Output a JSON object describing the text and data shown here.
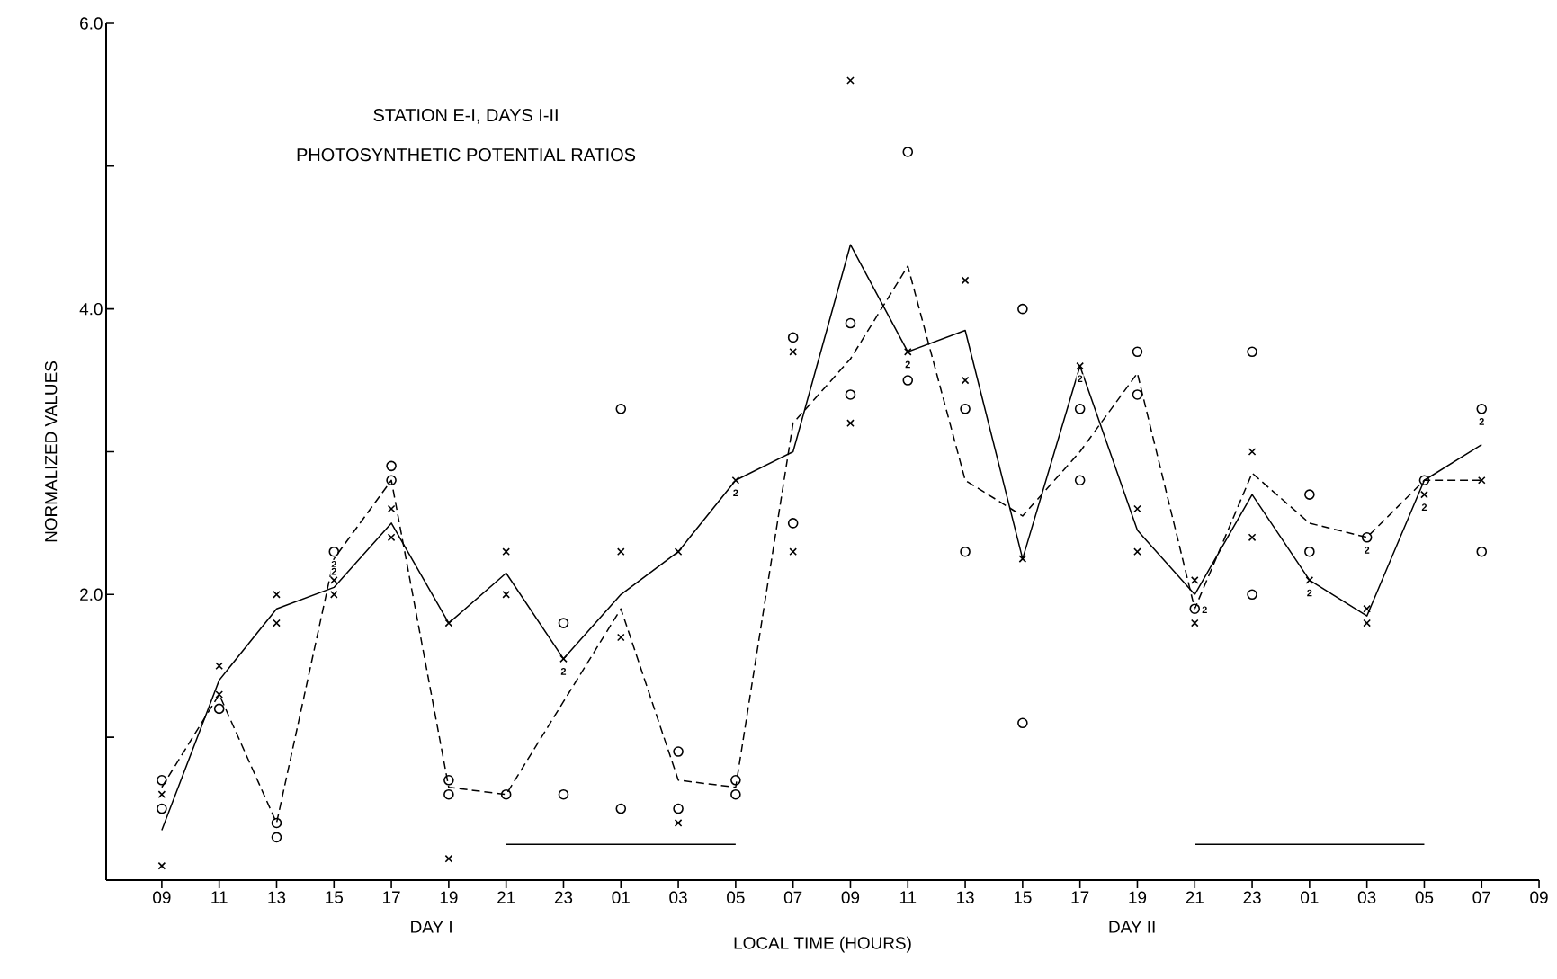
{
  "chart_data": {
    "type": "line",
    "title": "STATION E-I, DAYS I-II",
    "subtitle": "PHOTOSYNTHETIC POTENTIAL RATIOS",
    "xlabel": "LOCAL TIME (HOURS)",
    "ylabel": "NORMALIZED VALUES",
    "categories": [
      "09",
      "11",
      "13",
      "15",
      "17",
      "19",
      "21",
      "23",
      "01",
      "03",
      "05",
      "07",
      "09",
      "11",
      "13",
      "15",
      "17",
      "19",
      "21",
      "23",
      "01",
      "03",
      "05",
      "07",
      "09"
    ],
    "ylim": [
      0,
      6
    ],
    "yticks": [
      {
        "value": 1,
        "label": null
      },
      {
        "value": 2,
        "label": "2.0"
      },
      {
        "value": 3,
        "label": null
      },
      {
        "value": 4,
        "label": "4.0"
      },
      {
        "value": 5,
        "label": null
      },
      {
        "value": 6,
        "label": "6.0"
      }
    ],
    "series": [
      {
        "line_style": "solid",
        "color": "#000000",
        "values": [
          0.35,
          1.4,
          1.9,
          2.05,
          2.5,
          1.8,
          2.15,
          1.55,
          2.0,
          2.3,
          2.8,
          3.0,
          4.45,
          3.7,
          3.85,
          2.25,
          3.6,
          2.45,
          2.0,
          2.7,
          2.1,
          1.85,
          2.8,
          3.05,
          null
        ]
      },
      {
        "line_style": "dashed",
        "color": "#000000",
        "values": [
          0.65,
          1.3,
          0.4,
          2.25,
          2.8,
          0.65,
          0.6,
          1.25,
          1.9,
          0.7,
          0.65,
          3.2,
          3.65,
          4.3,
          2.8,
          2.55,
          3.0,
          3.55,
          1.9,
          2.85,
          2.5,
          2.4,
          2.8,
          2.8,
          null
        ]
      },
      {
        "type": "scatter",
        "marker": "cross",
        "color": "#000000",
        "values": [
          0.1,
          1.5,
          2.0,
          2.1,
          2.6,
          1.8,
          2.3,
          1.55,
          2.3,
          2.3,
          2.8,
          3.7,
          5.6,
          3.7,
          4.2,
          2.25,
          3.6,
          2.6,
          2.1,
          3.0,
          2.1,
          1.9,
          2.7,
          2.8,
          null
        ]
      },
      {
        "type": "scatter",
        "marker": "cross",
        "color": "#000000",
        "values": [
          0.6,
          1.3,
          1.8,
          2.0,
          2.4,
          0.15,
          2.0,
          null,
          1.7,
          0.4,
          null,
          2.3,
          3.2,
          null,
          3.5,
          null,
          null,
          2.3,
          1.8,
          2.4,
          null,
          1.8,
          null,
          null,
          null
        ]
      },
      {
        "type": "scatter",
        "marker": "circle",
        "color": "#000000",
        "values": [
          0.7,
          1.2,
          0.4,
          2.3,
          2.9,
          0.7,
          0.6,
          1.8,
          3.3,
          0.9,
          0.7,
          3.8,
          3.9,
          5.1,
          3.3,
          4.0,
          3.3,
          3.7,
          1.9,
          3.7,
          2.7,
          2.4,
          2.8,
          3.3,
          null
        ]
      },
      {
        "type": "scatter",
        "marker": "circle",
        "color": "#000000",
        "values": [
          0.5,
          null,
          0.3,
          null,
          2.8,
          0.6,
          null,
          0.6,
          0.5,
          0.5,
          0.6,
          2.5,
          3.4,
          3.5,
          2.3,
          1.1,
          2.8,
          3.4,
          null,
          2.0,
          2.3,
          null,
          null,
          2.3,
          null
        ]
      },
      {
        "line_style": "solid",
        "color": "#000000",
        "values": [
          null,
          null,
          null,
          null,
          null,
          null,
          0.25,
          0.25,
          0.25,
          0.25,
          0.25,
          null,
          null,
          null,
          null,
          null,
          null,
          null,
          null,
          null,
          null,
          null,
          null,
          null,
          null
        ]
      },
      {
        "line_style": "solid",
        "color": "#000000",
        "values": [
          null,
          null,
          null,
          null,
          null,
          null,
          null,
          null,
          null,
          null,
          null,
          null,
          null,
          null,
          null,
          null,
          null,
          null,
          0.25,
          0.25,
          0.25,
          0.25,
          0.25,
          null,
          null
        ]
      }
    ],
    "annotations": [
      "DAY I",
      "DAY II",
      {
        "text": "2",
        "x": "15",
        "y": 2.3
      },
      {
        "text": "2",
        "x": "23",
        "y": 1.55
      },
      {
        "text": "2",
        "x": "05",
        "y": 2.8
      },
      {
        "text": "2",
        "x": "15",
        "y": 2.25
      },
      "2",
      "2",
      "2",
      "2",
      "2",
      "2",
      "2"
    ],
    "grid": false
  }
}
